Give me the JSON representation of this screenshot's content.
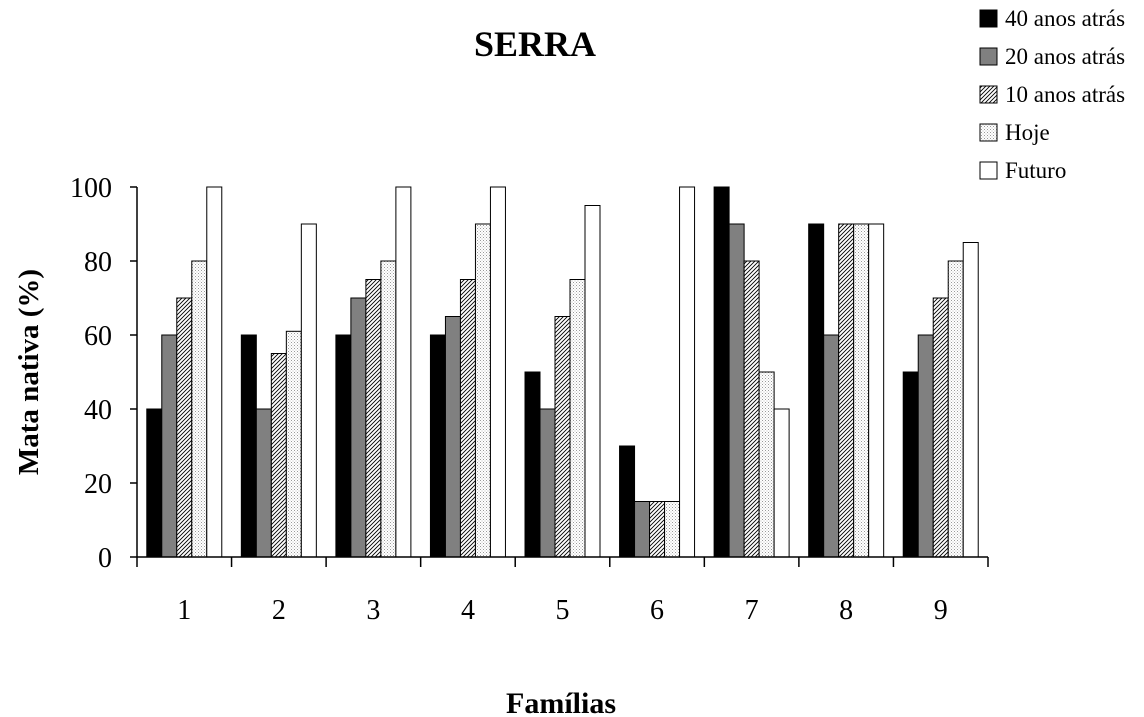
{
  "chart_data": {
    "type": "bar",
    "title": "SERRA",
    "xlabel": "Famílias",
    "ylabel": "Mata nativa (%)",
    "ylim": [
      0,
      100
    ],
    "yticks": [
      0,
      20,
      40,
      60,
      80,
      100
    ],
    "categories": [
      "1",
      "2",
      "3",
      "4",
      "5",
      "6",
      "7",
      "8",
      "9"
    ],
    "grid": false,
    "legend_position": "top-right",
    "series": [
      {
        "name": "40 anos atrás",
        "fill": "solid-black",
        "values": [
          40,
          60,
          60,
          60,
          50,
          30,
          100,
          90,
          50
        ]
      },
      {
        "name": "20 anos atrás",
        "fill": "solid-gray",
        "values": [
          60,
          40,
          70,
          65,
          40,
          15,
          90,
          60,
          60
        ]
      },
      {
        "name": "10 anos atrás",
        "fill": "diagonal-hatch",
        "values": [
          70,
          55,
          75,
          75,
          65,
          15,
          80,
          90,
          70
        ]
      },
      {
        "name": "Hoje",
        "fill": "light-dotted",
        "values": [
          80,
          61,
          80,
          90,
          75,
          15,
          50,
          90,
          80
        ]
      },
      {
        "name": "Futuro",
        "fill": "white",
        "values": [
          100,
          90,
          100,
          100,
          95,
          100,
          40,
          90,
          85
        ]
      }
    ],
    "colors": {
      "black": "#000000",
      "gray": "#808080",
      "white": "#ffffff"
    }
  }
}
